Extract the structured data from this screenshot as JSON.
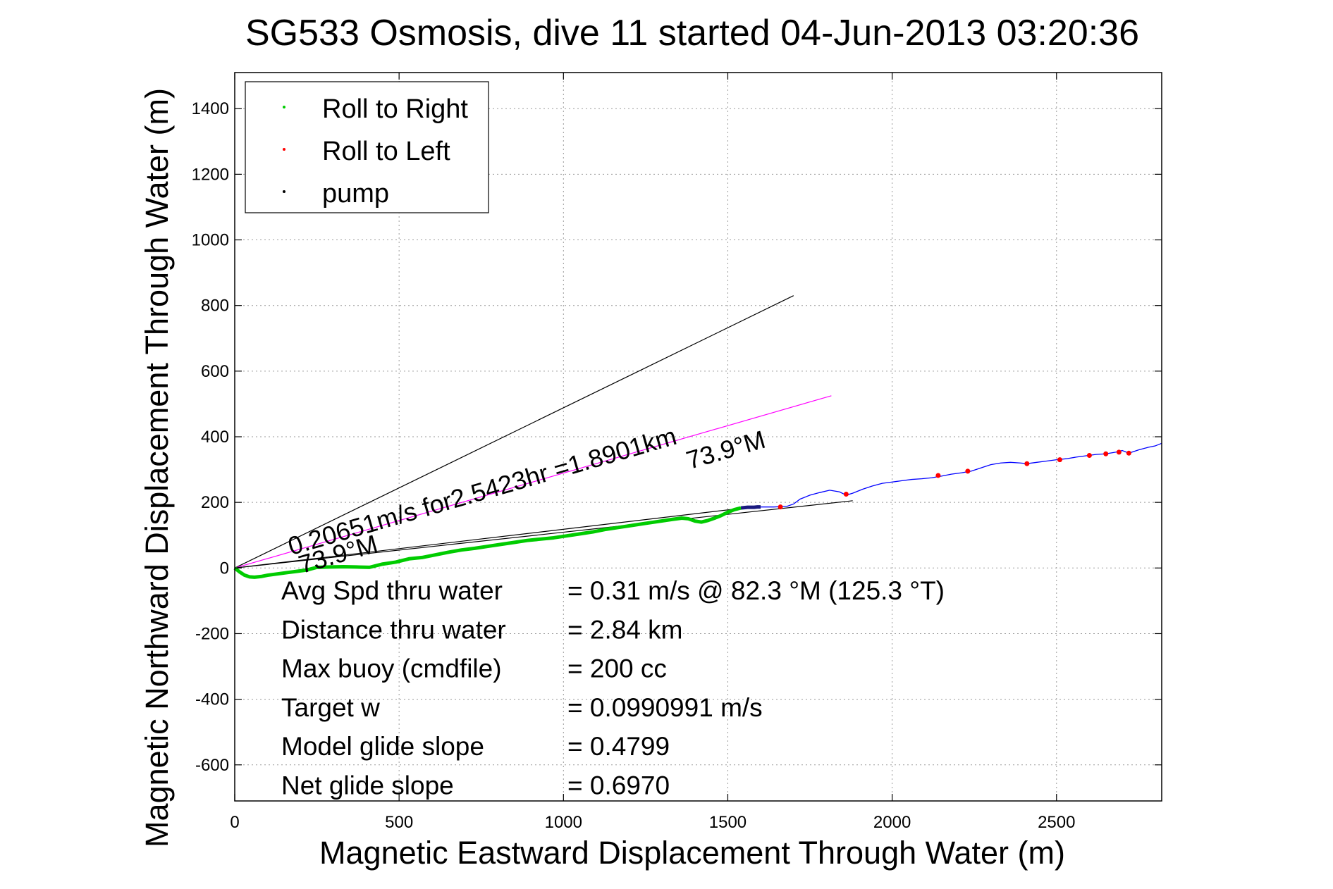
{
  "chart_data": {
    "type": "line",
    "title": "SG533 Osmosis, dive 11 started 04-Jun-2013 03:20:36",
    "xlabel": "Magnetic Eastward Displacement Through Water (m)",
    "ylabel": "Magnetic Northward Displacement Through Water (m)",
    "xlim": [
      0,
      2820
    ],
    "ylim": [
      -710,
      1510
    ],
    "x_ticks": [
      0,
      500,
      1000,
      1500,
      2000,
      2500
    ],
    "y_ticks": [
      -600,
      -400,
      -200,
      0,
      200,
      400,
      600,
      800,
      1000,
      1200,
      1400
    ],
    "x_tick_labels": [
      "0",
      "500",
      "1000",
      "1500",
      "2000",
      "2500"
    ],
    "y_tick_labels": [
      "-600",
      "-400",
      "-200",
      "0",
      "200",
      "400",
      "600",
      "800",
      "1000",
      "1200",
      "1400"
    ],
    "grid": true,
    "legend": {
      "position": "top-left",
      "entries": [
        {
          "label": "Roll to Right",
          "color": "#00cc00"
        },
        {
          "label": "Roll to Left",
          "color": "#ff0000"
        },
        {
          "label": "pump",
          "color": "#000000"
        }
      ]
    },
    "series": [
      {
        "name": "Roll to Right",
        "color": "#00cc00",
        "x": [
          0,
          15,
          30,
          45,
          60,
          80,
          100,
          130,
          160,
          190,
          220,
          250,
          290,
          330,
          370,
          410,
          450,
          490,
          530,
          570,
          610,
          650,
          690,
          730,
          770,
          810,
          850,
          890,
          930,
          970,
          1010,
          1050,
          1090,
          1130,
          1170,
          1210,
          1250,
          1290,
          1330,
          1360,
          1380,
          1400,
          1420,
          1440,
          1460,
          1480,
          1500,
          1520,
          1540
        ],
        "y": [
          0,
          -12,
          -22,
          -27,
          -28,
          -26,
          -22,
          -18,
          -14,
          -10,
          -6,
          2,
          3,
          4,
          3,
          2,
          12,
          18,
          28,
          32,
          40,
          48,
          55,
          60,
          66,
          72,
          78,
          84,
          88,
          92,
          98,
          104,
          110,
          118,
          124,
          130,
          136,
          142,
          148,
          152,
          150,
          143,
          140,
          145,
          152,
          160,
          170,
          178,
          183
        ]
      },
      {
        "name": "pump",
        "color": "#1a1a80",
        "x": [
          1540,
          1550,
          1560,
          1570,
          1580,
          1590,
          1600
        ],
        "y": [
          183,
          184,
          185,
          185,
          185,
          186,
          186
        ]
      },
      {
        "name": "Roll to Left",
        "color": "#ff0000",
        "x": [
          1660,
          1860,
          2140,
          2230,
          2410,
          2510,
          2600,
          2650,
          2690,
          2720
        ],
        "y": [
          186,
          225,
          282,
          295,
          318,
          330,
          343,
          348,
          353,
          350
        ]
      }
    ],
    "track": {
      "color": "#0000ff",
      "x": [
        1600,
        1640,
        1680,
        1700,
        1720,
        1750,
        1780,
        1810,
        1840,
        1860,
        1880,
        1910,
        1940,
        1970,
        2000,
        2030,
        2060,
        2090,
        2120,
        2150,
        2180,
        2210,
        2240,
        2270,
        2300,
        2330,
        2360,
        2390,
        2410,
        2440,
        2470,
        2500,
        2530,
        2560,
        2590,
        2620,
        2650,
        2680,
        2700,
        2720,
        2750,
        2780,
        2800,
        2820
      ],
      "y": [
        186,
        186,
        188,
        195,
        210,
        222,
        230,
        237,
        232,
        222,
        228,
        240,
        250,
        258,
        262,
        266,
        270,
        272,
        275,
        280,
        286,
        290,
        295,
        305,
        315,
        320,
        322,
        320,
        318,
        322,
        326,
        330,
        333,
        338,
        342,
        346,
        348,
        353,
        358,
        350,
        360,
        368,
        372,
        380
      ]
    },
    "lines": [
      {
        "id": "steep-heading-line",
        "color": "#000000",
        "x": [
          0,
          1700
        ],
        "y": [
          0,
          830
        ]
      },
      {
        "id": "speed-heading-line",
        "color": "#ff00ff",
        "x": [
          0,
          1815
        ],
        "y": [
          0,
          525
        ]
      },
      {
        "id": "model-heading-line",
        "color": "#000000",
        "x": [
          0,
          1880
        ],
        "y": [
          0,
          205
        ]
      },
      {
        "id": "actual-track-chord",
        "color": "#000000",
        "x": [
          0,
          1550
        ],
        "y": [
          0,
          183
        ]
      }
    ],
    "annotations": {
      "speed_label": "0.20651m/s for2.5423hr =1.8901km",
      "heading_upper": "73.9°M",
      "heading_lower": "73.9°M",
      "stats": [
        {
          "label": "Avg Spd thru water",
          "value": "=  0.31 m/s @  82.3 °M (125.3 °T)"
        },
        {
          "label": "Distance thru water",
          "value": "=  2.84 km"
        },
        {
          "label": "Max buoy (cmdfile)",
          "value": "= 200 cc"
        },
        {
          "label": "Target w",
          "value": "= 0.0990991 m/s"
        },
        {
          "label": "Model glide slope",
          "value": "= 0.4799"
        },
        {
          "label": "Net glide slope",
          "value": "= 0.6970"
        }
      ]
    }
  }
}
